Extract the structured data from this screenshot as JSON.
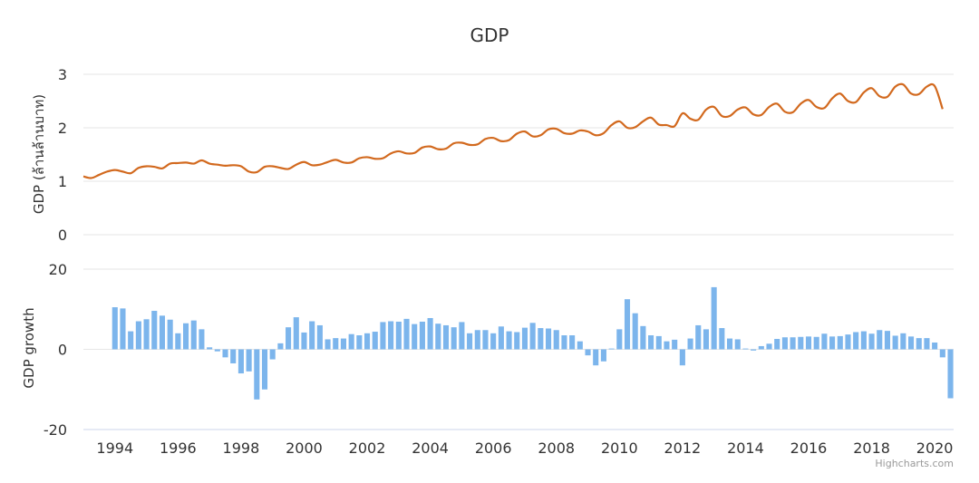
{
  "chart_data": {
    "title": "GDP",
    "credits": "Highcharts.com",
    "colors": {
      "gdp": "#d2691e",
      "growth": "#7cb5ec"
    },
    "x_axis": {
      "range": [
        1993.0,
        2020.6
      ],
      "tick_labels": [
        "1994",
        "1996",
        "1998",
        "2000",
        "2002",
        "2004",
        "2006",
        "2008",
        "2010",
        "2012",
        "2014",
        "2016",
        "2018",
        "2020"
      ]
    },
    "panels": [
      {
        "id": "gdp",
        "type": "line",
        "ylabel": "GDP (ล้านล้านบาท)",
        "ylim": [
          0,
          3
        ],
        "y_ticks": [
          "0",
          "1",
          "2",
          "3"
        ],
        "series": [
          {
            "x_start": 1993.0,
            "x_step": 0.25,
            "values": [
              1.09,
              1.06,
              1.12,
              1.18,
              1.21,
              1.18,
              1.15,
              1.25,
              1.28,
              1.27,
              1.24,
              1.33,
              1.34,
              1.35,
              1.33,
              1.39,
              1.33,
              1.31,
              1.29,
              1.3,
              1.28,
              1.18,
              1.17,
              1.27,
              1.28,
              1.25,
              1.23,
              1.31,
              1.36,
              1.3,
              1.31,
              1.36,
              1.4,
              1.35,
              1.35,
              1.43,
              1.45,
              1.42,
              1.43,
              1.52,
              1.56,
              1.52,
              1.53,
              1.63,
              1.65,
              1.6,
              1.61,
              1.71,
              1.72,
              1.68,
              1.69,
              1.79,
              1.81,
              1.75,
              1.77,
              1.89,
              1.93,
              1.84,
              1.86,
              1.97,
              1.98,
              1.9,
              1.89,
              1.95,
              1.93,
              1.86,
              1.9,
              2.05,
              2.12,
              2.0,
              2.01,
              2.12,
              2.19,
              2.06,
              2.05,
              2.03,
              2.27,
              2.17,
              2.15,
              2.34,
              2.39,
              2.22,
              2.22,
              2.34,
              2.38,
              2.25,
              2.24,
              2.39,
              2.45,
              2.3,
              2.29,
              2.45,
              2.52,
              2.39,
              2.37,
              2.55,
              2.64,
              2.5,
              2.48,
              2.66,
              2.74,
              2.59,
              2.58,
              2.77,
              2.81,
              2.64,
              2.63,
              2.77,
              2.78,
              2.35
            ]
          }
        ]
      },
      {
        "id": "growth",
        "type": "bar",
        "ylabel": "GDP growth",
        "ylim": [
          -20,
          20
        ],
        "y_ticks": [
          "-20",
          "0",
          "20"
        ],
        "series": [
          {
            "x_start": 1994.0,
            "x_step": 0.25,
            "values": [
              10.5,
              10.2,
              4.5,
              7.0,
              7.5,
              9.6,
              8.4,
              7.4,
              4.0,
              6.5,
              7.2,
              5.0,
              0.5,
              -0.5,
              -2.0,
              -3.5,
              -6.0,
              -5.5,
              -12.5,
              -10.0,
              -2.5,
              1.5,
              5.5,
              8.0,
              4.2,
              7.0,
              6.0,
              2.5,
              2.8,
              2.7,
              3.8,
              3.5,
              4.0,
              4.4,
              6.8,
              7.0,
              6.9,
              7.6,
              6.3,
              6.9,
              7.8,
              6.4,
              6.0,
              5.5,
              6.8,
              4.0,
              4.8,
              4.8,
              4.0,
              5.7,
              4.5,
              4.3,
              5.4,
              6.6,
              5.3,
              5.2,
              4.8,
              3.5,
              3.5,
              2.0,
              -1.5,
              -4.0,
              -3.0,
              0.2,
              5.0,
              12.5,
              9.0,
              5.8,
              3.5,
              3.3,
              2.0,
              2.4,
              -4.0,
              2.7,
              6.0,
              5.0,
              15.5,
              5.3,
              2.7,
              2.5,
              0.2,
              -0.3,
              0.8,
              1.4,
              2.6,
              3.0,
              3.0,
              3.1,
              3.2,
              3.1,
              3.9,
              3.2,
              3.3,
              3.7,
              4.3,
              4.5,
              3.9,
              4.8,
              4.6,
              3.4,
              4.0,
              3.2,
              2.8,
              2.8,
              1.7,
              -2.0,
              -12.2
            ]
          }
        ]
      }
    ]
  }
}
